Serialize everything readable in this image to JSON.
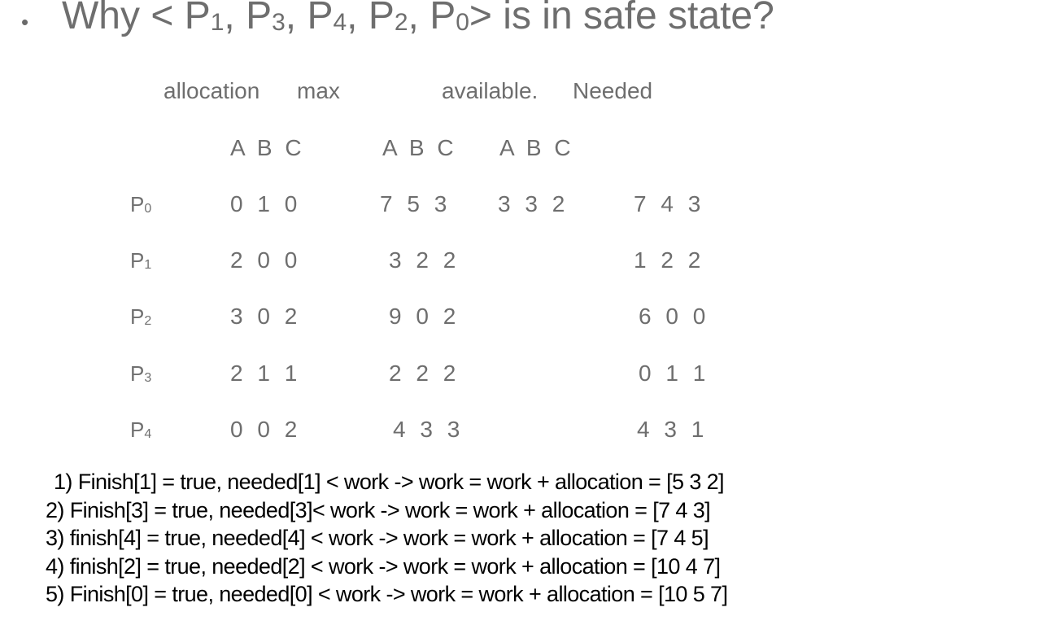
{
  "title": {
    "bullet": "•",
    "prefix": "Why < P",
    "s1": "1",
    "sep1": ", P",
    "s2": "3",
    "sep2": ", P",
    "s3": "4",
    "sep3": ", P",
    "s4": "2",
    "sep4": ", P",
    "s5": "0",
    "suffix": "> is in safe state?"
  },
  "columns": {
    "allocation": "allocation",
    "max": "max",
    "available": "available.",
    "needed": "Needed"
  },
  "resource_headers": {
    "allocation": "A B C",
    "max": "A B C",
    "available": "A B C"
  },
  "rows": [
    {
      "p": "P",
      "sub": "0",
      "allocation": "0 1 0",
      "max": "7 5 3",
      "available": "3 3 2",
      "needed": "7 4 3"
    },
    {
      "p": "P",
      "sub": "1",
      "allocation": "2 0 0",
      "max": "3 2 2",
      "available": "",
      "needed": "1 2 2"
    },
    {
      "p": "P",
      "sub": "2",
      "allocation": "3 0 2",
      "max": "9 0 2",
      "available": "",
      "needed": "6 0 0"
    },
    {
      "p": "P",
      "sub": "3",
      "allocation": "2 1 1",
      "max": "2 2 2",
      "available": "",
      "needed": "0 1 1"
    },
    {
      "p": "P",
      "sub": "4",
      "allocation": "0 0 2",
      "max": "4 3 3",
      "available": "",
      "needed": "4 3 1"
    }
  ],
  "steps": [
    "1)  Finish[1] = true, needed[1] < work -> work = work + allocation = [5 3 2]",
    "2)  Finish[3] = true,  needed[3]< work -> work = work + allocation = [7 4 3]",
    "3)  finish[4] = true, needed[4] < work -> work = work + allocation = [7 4 5]",
    "4)  finish[2] = true, needed[2] < work -> work = work + allocation = [10 4 7]",
    "5)  Finish[0] = true, needed[0] < work -> work = work + allocation = [10 5 7]"
  ]
}
